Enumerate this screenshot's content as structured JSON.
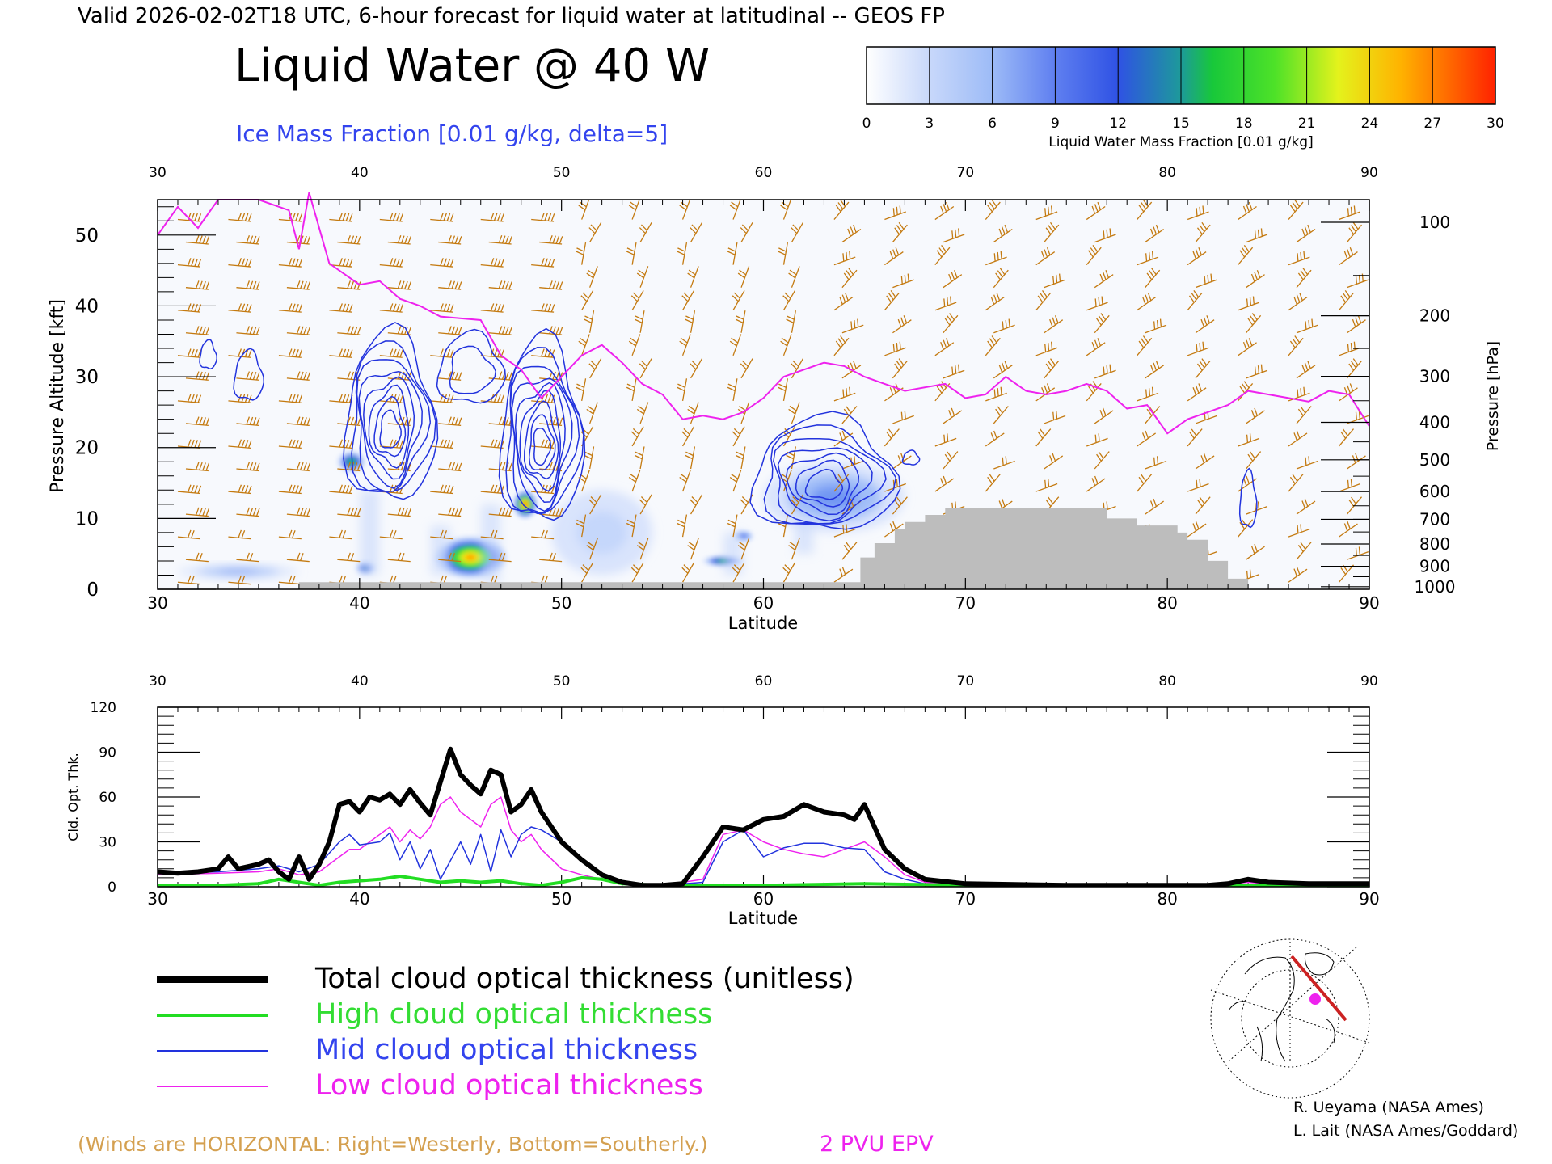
{
  "header": {
    "valid_line": "Valid 2026-02-02T18 UTC, 6-hour forecast for liquid water at latitudinal -- GEOS FP",
    "title": "Liquid Water @ 40 W",
    "subtitle": "Ice Mass Fraction [0.01 g/kg, delta=5]"
  },
  "colorbar": {
    "ticks": [
      "0",
      "3",
      "6",
      "9",
      "12",
      "15",
      "18",
      "21",
      "24",
      "27",
      "30"
    ],
    "label": "Liquid Water Mass Fraction [0.01 g/kg]",
    "colors": [
      "#f7f9fd",
      "#c4d6fb",
      "#9ebcf8",
      "#6f94f2",
      "#3a59e6",
      "#1f8fb0",
      "#18c83a",
      "#30e02a",
      "#c0f025",
      "#ffd400",
      "#ff9500",
      "#ff2a00"
    ]
  },
  "colors": {
    "ice_contour": "#2233dd",
    "pv_line": "#ee22ee",
    "wind_barb": "#c47a10",
    "terrain": "#bdbdbd",
    "total_line": "#000000",
    "high_line": "#22dd22",
    "mid_line": "#2233dd",
    "low_line": "#ee22ee"
  },
  "top_panel": {
    "xlabel": "Latitude",
    "ylabel_left": "Pressure Altitude [kft]",
    "ylabel_right": "Pressure [hPa]",
    "x_ticks": [
      "30",
      "40",
      "50",
      "60",
      "70",
      "80",
      "90"
    ],
    "y_ticks_left": [
      "0",
      "10",
      "20",
      "30",
      "40",
      "50"
    ],
    "pressure_ticks": [
      "100",
      "200",
      "300",
      "400",
      "500",
      "600",
      "700",
      "800",
      "900",
      "1000"
    ]
  },
  "bottom_panel": {
    "xlabel": "Latitude",
    "ylabel": "Cld. Opt. Thk.",
    "x_ticks": [
      "30",
      "40",
      "50",
      "60",
      "70",
      "80",
      "90"
    ],
    "y_ticks": [
      "0",
      "30",
      "60",
      "90",
      "120"
    ]
  },
  "legend": {
    "total": "Total cloud optical thickness (unitless)",
    "high": "High cloud optical thickness",
    "mid": "Mid cloud optical thickness",
    "low": "Low cloud optical thickness"
  },
  "footer": {
    "winds_note": "(Winds are HORIZONTAL: Right=Westerly, Bottom=Southerly.)",
    "pv_label": "2 PVU EPV",
    "credit_1": "R. Ueyama (NASA Ames)",
    "credit_2": "L. Lait (NASA Ames/Goddard)"
  },
  "chart_data": [
    {
      "type": "heatmap",
      "xlim": [
        30,
        90
      ],
      "ylim": [
        0,
        55
      ],
      "liquid_water_blobs": [
        {
          "lat": 45.5,
          "alt": 4.5,
          "rx": 1.8,
          "ry": 3.0,
          "max": 27
        },
        {
          "lat": 48.2,
          "alt": 12.0,
          "rx": 0.6,
          "ry": 2.0,
          "max": 30
        },
        {
          "lat": 39.6,
          "alt": 18.0,
          "rx": 0.7,
          "ry": 1.5,
          "max": 16
        },
        {
          "lat": 58.0,
          "alt": 4.0,
          "rx": 1.0,
          "ry": 0.8,
          "max": 16
        },
        {
          "lat": 40.3,
          "alt": 3.0,
          "rx": 0.5,
          "ry": 1.0,
          "max": 13
        },
        {
          "lat": 34.0,
          "alt": 2.5,
          "rx": 3.0,
          "ry": 0.8,
          "max": 9
        },
        {
          "lat": 59.0,
          "alt": 7.5,
          "rx": 0.5,
          "ry": 0.8,
          "max": 12
        },
        {
          "lat": 63.5,
          "alt": 13.0,
          "rx": 3.5,
          "ry": 5.0,
          "max": 9
        },
        {
          "lat": 52.0,
          "alt": 8.0,
          "rx": 2.5,
          "ry": 6.0,
          "max": 4
        }
      ],
      "ice_contours": [
        {
          "lat": 34.5,
          "alt": 30.0,
          "rx": 0.7,
          "ry": 3.5,
          "levels": 1
        },
        {
          "lat": 32.5,
          "alt": 33.0,
          "rx": 0.4,
          "ry": 2.0,
          "levels": 1
        },
        {
          "lat": 41.5,
          "alt": 24.0,
          "rx": 2.2,
          "ry": 12.0,
          "levels": 8
        },
        {
          "lat": 45.5,
          "alt": 31.0,
          "rx": 1.6,
          "ry": 5.0,
          "levels": 2
        },
        {
          "lat": 49.0,
          "alt": 22.0,
          "rx": 2.0,
          "ry": 13.0,
          "levels": 9
        },
        {
          "lat": 63.0,
          "alt": 16.0,
          "rx": 3.5,
          "ry": 8.0,
          "levels": 7
        },
        {
          "lat": 84.0,
          "alt": 12.5,
          "rx": 0.4,
          "ry": 4.0,
          "levels": 1
        },
        {
          "lat": 67.3,
          "alt": 18.5,
          "rx": 0.4,
          "ry": 1.0,
          "levels": 1
        }
      ],
      "pv_2pvu_line": [
        [
          30,
          50
        ],
        [
          31,
          54
        ],
        [
          32,
          51
        ],
        [
          33,
          55
        ],
        [
          35,
          55
        ],
        [
          36.5,
          53.5
        ],
        [
          37,
          48
        ],
        [
          37.5,
          56
        ],
        [
          38.5,
          46
        ],
        [
          40,
          43
        ],
        [
          41,
          43.5
        ],
        [
          42,
          41
        ],
        [
          43,
          40
        ],
        [
          44,
          38.5
        ],
        [
          46,
          38
        ],
        [
          47,
          33
        ],
        [
          48,
          31
        ],
        [
          49,
          27
        ],
        [
          50,
          30
        ],
        [
          51,
          33
        ],
        [
          52,
          34.5
        ],
        [
          53,
          32
        ],
        [
          54,
          29
        ],
        [
          55,
          27.5
        ],
        [
          56,
          24
        ],
        [
          57,
          24.5
        ],
        [
          58,
          24
        ],
        [
          59,
          25
        ],
        [
          60,
          27
        ],
        [
          61,
          30
        ],
        [
          62,
          31
        ],
        [
          63,
          32
        ],
        [
          64,
          31.5
        ],
        [
          65,
          30
        ],
        [
          66,
          29
        ],
        [
          67,
          28
        ],
        [
          68,
          28.5
        ],
        [
          69,
          29
        ],
        [
          70,
          27
        ],
        [
          71,
          27.5
        ],
        [
          72,
          30
        ],
        [
          73,
          28
        ],
        [
          74,
          27.5
        ],
        [
          75,
          28
        ],
        [
          76,
          29
        ],
        [
          77,
          28
        ],
        [
          78,
          25.5
        ],
        [
          79,
          26
        ],
        [
          80,
          22
        ],
        [
          81,
          24
        ],
        [
          82,
          25
        ],
        [
          83,
          26
        ],
        [
          84,
          28
        ],
        [
          85,
          27.5
        ],
        [
          86,
          27
        ],
        [
          87,
          26.5
        ],
        [
          88,
          28
        ],
        [
          89,
          27.5
        ],
        [
          90,
          23
        ]
      ],
      "terrain": [
        [
          37,
          0
        ],
        [
          37,
          1
        ],
        [
          64.8,
          1
        ],
        [
          64.8,
          4.5
        ],
        [
          65.5,
          4.5
        ],
        [
          65.5,
          6.5
        ],
        [
          66.5,
          6.5
        ],
        [
          66.5,
          8.5
        ],
        [
          67,
          8.5
        ],
        [
          67,
          9.5
        ],
        [
          68,
          9.5
        ],
        [
          68,
          10.5
        ],
        [
          69,
          10.5
        ],
        [
          69,
          11.5
        ],
        [
          77,
          11.5
        ],
        [
          77,
          10
        ],
        [
          78.5,
          10
        ],
        [
          78.5,
          9
        ],
        [
          80.5,
          9
        ],
        [
          80.5,
          8
        ],
        [
          81,
          8
        ],
        [
          81,
          7
        ],
        [
          82,
          7
        ],
        [
          82,
          4
        ],
        [
          83,
          4
        ],
        [
          83,
          1.5
        ],
        [
          84,
          1.5
        ],
        [
          84,
          0
        ]
      ]
    },
    {
      "type": "line",
      "xlim": [
        30,
        90
      ],
      "ylim": [
        0,
        120
      ],
      "series": [
        {
          "name": "Total cloud optical thickness (unitless)",
          "x": [
            30,
            31,
            32,
            33,
            33.5,
            34,
            35,
            35.5,
            36,
            36.5,
            37,
            37.5,
            38,
            38.5,
            39,
            39.5,
            40,
            40.5,
            41,
            41.5,
            42,
            42.5,
            43,
            43.5,
            44,
            44.5,
            45,
            45.5,
            46,
            46.5,
            47,
            47.5,
            48,
            48.5,
            49,
            49.5,
            50,
            51,
            52,
            53,
            54,
            55,
            56,
            57,
            58,
            59,
            60,
            61,
            62,
            63,
            64,
            64.5,
            65,
            66,
            67,
            68,
            70,
            75,
            80,
            82,
            83,
            84,
            85,
            87,
            90
          ],
          "y": [
            10,
            9,
            10,
            12,
            20,
            12,
            15,
            18,
            10,
            5,
            20,
            5,
            15,
            30,
            55,
            57,
            50,
            60,
            58,
            62,
            55,
            65,
            56,
            48,
            70,
            92,
            75,
            68,
            62,
            78,
            75,
            50,
            55,
            65,
            50,
            40,
            30,
            18,
            8,
            3,
            1,
            1,
            2,
            20,
            40,
            38,
            45,
            47,
            55,
            50,
            48,
            45,
            55,
            25,
            12,
            5,
            2,
            1,
            1,
            1,
            2,
            5,
            3,
            2,
            2
          ]
        },
        {
          "name": "High cloud optical thickness",
          "x": [
            30,
            33,
            35,
            36,
            37,
            38,
            39,
            40,
            41,
            42,
            43,
            44,
            45,
            46,
            47,
            48,
            49,
            50,
            51,
            52,
            53,
            55,
            60,
            65,
            70,
            75,
            80,
            85,
            90
          ],
          "y": [
            1,
            1,
            2,
            5,
            3,
            1,
            3,
            4,
            5,
            7,
            5,
            3,
            4,
            3,
            4,
            2,
            1,
            3,
            6,
            5,
            2,
            1,
            1,
            2,
            1,
            1,
            1,
            1,
            1
          ]
        },
        {
          "name": "Mid cloud optical thickness",
          "x": [
            30,
            33,
            35,
            36,
            37,
            38,
            39,
            39.5,
            40,
            41,
            41.5,
            42,
            42.5,
            43,
            43.5,
            44,
            45,
            45.5,
            46,
            46.5,
            47,
            47.5,
            48,
            48.5,
            49,
            50,
            51,
            52,
            53,
            55,
            57,
            58,
            59,
            60,
            61,
            62,
            63,
            64,
            65,
            66,
            67,
            68,
            70,
            80,
            83,
            84,
            85,
            90
          ],
          "y": [
            9,
            10,
            12,
            14,
            10,
            15,
            30,
            35,
            28,
            30,
            36,
            18,
            30,
            12,
            25,
            5,
            30,
            15,
            35,
            10,
            38,
            20,
            35,
            40,
            38,
            30,
            18,
            8,
            3,
            1,
            3,
            30,
            38,
            20,
            26,
            29,
            29,
            26,
            25,
            10,
            5,
            2,
            1,
            1,
            2,
            4,
            2,
            1
          ]
        },
        {
          "name": "Low cloud optical thickness",
          "x": [
            30,
            33,
            35,
            36,
            37,
            38,
            39,
            39.5,
            40,
            40.5,
            41,
            41.5,
            42,
            42.5,
            43,
            43.5,
            44,
            44.5,
            45,
            45.5,
            46,
            46.5,
            47,
            47.5,
            48,
            48.5,
            49,
            50,
            51,
            52,
            53,
            55,
            57,
            58,
            59,
            60,
            61,
            62,
            63,
            64,
            65,
            66,
            67,
            68,
            70,
            80,
            83,
            84,
            85,
            90
          ],
          "y": [
            8,
            9,
            10,
            12,
            8,
            10,
            20,
            25,
            25,
            30,
            35,
            40,
            30,
            38,
            32,
            40,
            55,
            60,
            50,
            45,
            40,
            55,
            60,
            38,
            30,
            35,
            25,
            12,
            8,
            5,
            2,
            1,
            5,
            35,
            38,
            30,
            25,
            22,
            20,
            25,
            30,
            20,
            8,
            3,
            1,
            1,
            2,
            3,
            2,
            1
          ]
        }
      ]
    }
  ]
}
